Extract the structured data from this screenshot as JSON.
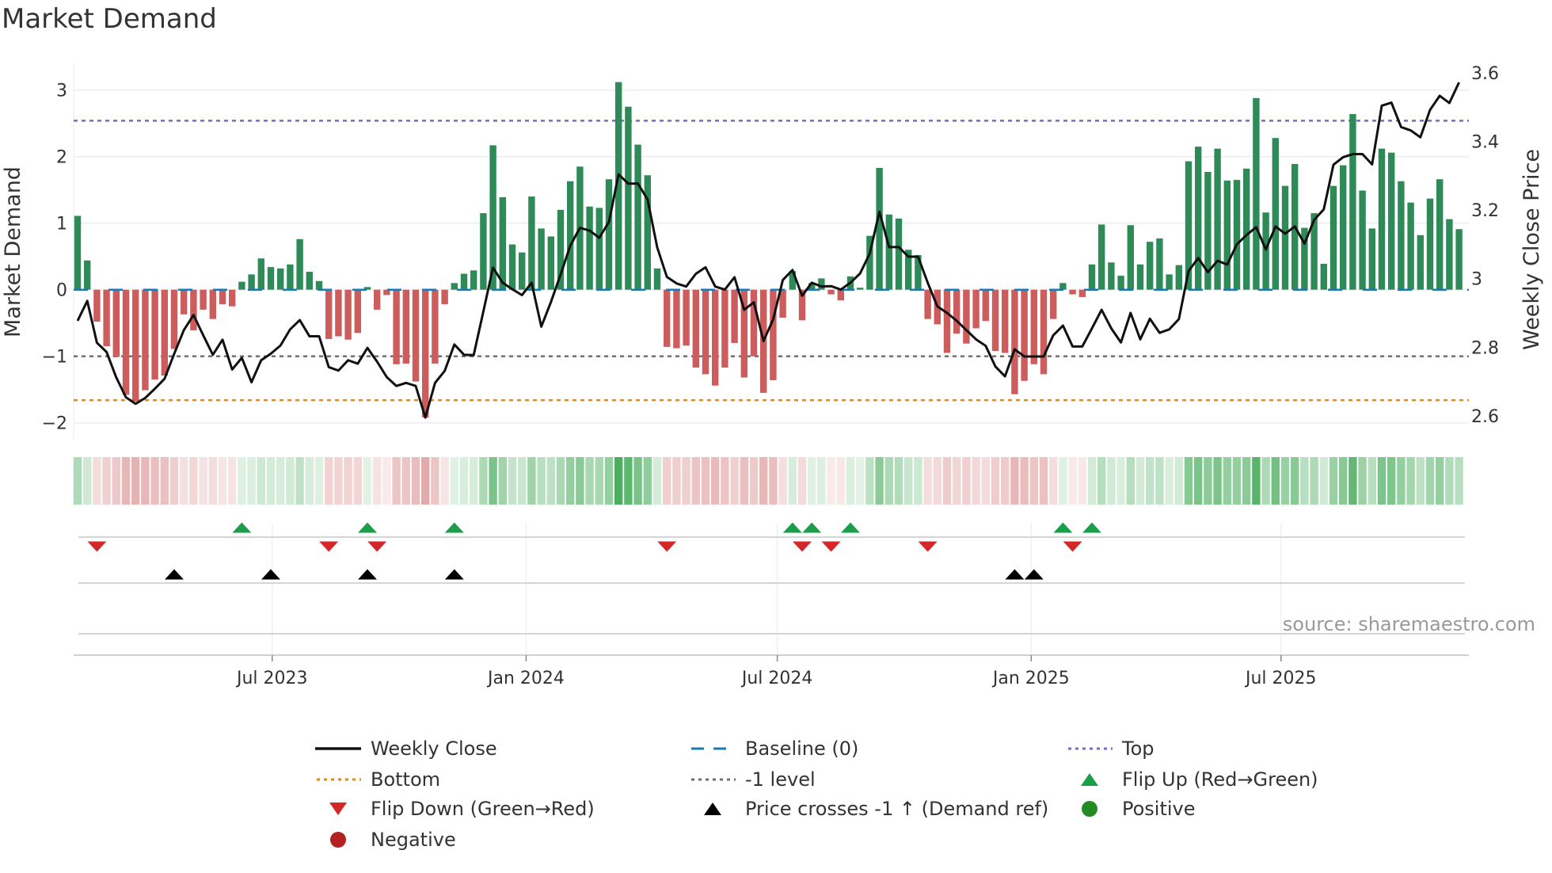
{
  "title": "Market Demand",
  "source": "source: sharemaestro.com",
  "chart_data": {
    "type": "bar",
    "title": "Market Demand",
    "ylabel": "Market Demand",
    "y2label": "Weekly Close Price",
    "ylim": [
      -2.2,
      3.4
    ],
    "y2lim": [
      2.56,
      3.62
    ],
    "yticks": [
      "3",
      "2",
      "1",
      "0",
      "−2"
    ],
    "ytick_values": [
      3,
      2,
      1,
      0,
      -2
    ],
    "yticks_neg1": "−1",
    "y2ticks": [
      "3.6",
      "3.4",
      "3.2",
      "3",
      "2.8",
      "2.6"
    ],
    "y2tick_values": [
      3.6,
      3.4,
      3.2,
      3.0,
      2.8,
      2.6
    ],
    "start_date": "2023-02-10",
    "frequency": "weekly",
    "x_ticks": [
      {
        "label": "Jul 2023",
        "date": "2023-07-01"
      },
      {
        "label": "Jan 2024",
        "date": "2024-01-01"
      },
      {
        "label": "Jul 2024",
        "date": "2024-07-01"
      },
      {
        "label": "Jan 2025",
        "date": "2025-01-01"
      },
      {
        "label": "Jul 2025",
        "date": "2025-07-01"
      }
    ],
    "reference_lines": {
      "top": 2.54,
      "bottom": -1.66,
      "minus_one": -1.0,
      "baseline": 0
    },
    "demand": [
      1.11,
      0.44,
      -0.48,
      -0.85,
      -1.01,
      -1.58,
      -1.68,
      -1.51,
      -1.35,
      -1.29,
      -0.89,
      -0.37,
      -0.61,
      -0.3,
      -0.44,
      -0.22,
      -0.25,
      0.12,
      0.23,
      0.47,
      0.34,
      0.32,
      0.38,
      0.76,
      0.27,
      0.13,
      -0.74,
      -0.7,
      -0.75,
      -0.65,
      0.04,
      -0.3,
      -0.08,
      -1.12,
      -1.11,
      -1.38,
      -1.92,
      -1.11,
      -0.22,
      0.1,
      0.24,
      0.29,
      1.15,
      2.17,
      1.39,
      0.68,
      0.56,
      1.4,
      0.92,
      0.8,
      1.2,
      1.63,
      1.85,
      1.25,
      1.23,
      1.66,
      3.12,
      2.75,
      2.18,
      1.72,
      0.32,
      -0.86,
      -0.88,
      -0.84,
      -1.17,
      -1.27,
      -1.44,
      -1.17,
      -0.8,
      -1.32,
      -1.0,
      -1.55,
      -1.36,
      -0.42,
      0.28,
      -0.46,
      0.1,
      0.17,
      -0.07,
      -0.16,
      0.2,
      0.03,
      0.81,
      1.83,
      1.13,
      1.07,
      0.6,
      0.52,
      -0.44,
      -0.52,
      -0.95,
      -0.66,
      -0.81,
      -0.58,
      -0.47,
      -0.92,
      -0.95,
      -1.57,
      -1.37,
      -1.12,
      -1.27,
      -0.44,
      0.1,
      -0.07,
      -0.11,
      0.38,
      0.98,
      0.41,
      0.21,
      0.97,
      0.38,
      0.72,
      0.77,
      0.23,
      0.37,
      1.93,
      2.15,
      1.77,
      2.12,
      1.64,
      1.65,
      1.82,
      2.88,
      1.16,
      2.28,
      1.56,
      1.89,
      0.93,
      1.15,
      0.39,
      1.56,
      1.87,
      2.64,
      1.49,
      0.92,
      2.12,
      2.06,
      1.63,
      1.31,
      0.82,
      1.37,
      1.66,
      1.06,
      0.91
    ],
    "weekly_close": [
      2.877,
      2.935,
      2.813,
      2.786,
      2.712,
      2.654,
      2.635,
      2.652,
      2.679,
      2.708,
      2.781,
      2.85,
      2.894,
      2.835,
      2.778,
      2.822,
      2.735,
      2.769,
      2.698,
      2.762,
      2.781,
      2.805,
      2.852,
      2.879,
      2.832,
      2.832,
      2.742,
      2.732,
      2.762,
      2.752,
      2.798,
      2.758,
      2.713,
      2.687,
      2.696,
      2.687,
      2.595,
      2.696,
      2.731,
      2.808,
      2.778,
      2.777,
      2.904,
      3.032,
      2.988,
      2.969,
      2.952,
      2.988,
      2.86,
      2.932,
      3.012,
      3.096,
      3.148,
      3.14,
      3.119,
      3.165,
      3.304,
      3.277,
      3.277,
      3.231,
      3.091,
      3.005,
      2.986,
      2.977,
      3.014,
      3.033,
      2.977,
      2.968,
      3.004,
      2.909,
      2.931,
      2.818,
      2.881,
      2.996,
      3.025,
      2.95,
      2.988,
      2.977,
      2.978,
      2.968,
      2.988,
      3.015,
      3.073,
      3.195,
      3.092,
      3.092,
      3.064,
      3.064,
      2.988,
      2.919,
      2.9,
      2.877,
      2.85,
      2.823,
      2.804,
      2.744,
      2.715,
      2.794,
      2.773,
      2.773,
      2.773,
      2.835,
      2.863,
      2.802,
      2.802,
      2.855,
      2.909,
      2.855,
      2.814,
      2.9,
      2.823,
      2.883,
      2.842,
      2.852,
      2.882,
      3.022,
      3.06,
      3.019,
      3.052,
      3.041,
      3.1,
      3.127,
      3.15,
      3.085,
      3.152,
      3.131,
      3.152,
      3.102,
      3.171,
      3.202,
      3.332,
      3.354,
      3.363,
      3.363,
      3.333,
      3.504,
      3.513,
      3.442,
      3.432,
      3.412,
      3.492,
      3.533,
      3.512,
      3.572
    ],
    "flip_up_weeks": [
      18,
      31,
      40,
      75,
      77,
      81,
      103,
      106
    ],
    "flip_down_weeks": [
      3,
      27,
      32,
      62,
      76,
      79,
      89,
      104
    ],
    "price_cross_weeks": [
      11,
      21,
      31,
      40,
      98,
      100
    ],
    "legend": [
      {
        "label": "Weekly Close",
        "kind": "line",
        "color": "#111111"
      },
      {
        "label": "Baseline (0)",
        "kind": "dash",
        "color": "#1f77b4"
      },
      {
        "label": "Top",
        "kind": "dot",
        "color": "#7b68c8"
      },
      {
        "label": "Bottom",
        "kind": "dot",
        "color": "#e08a1e"
      },
      {
        "label": "-1 level",
        "kind": "dot",
        "color": "#707070"
      },
      {
        "label": "Flip Up (Red→Green)",
        "kind": "tri-up",
        "color": "#1a9e4a"
      },
      {
        "label": "Flip Down (Green→Red)",
        "kind": "tri-down",
        "color": "#d62728"
      },
      {
        "label": "Price crosses -1 ↑ (Demand ref)",
        "kind": "tri-up",
        "color": "#000000"
      },
      {
        "label": "Positive",
        "kind": "dot-marker",
        "color": "#228b22"
      },
      {
        "label": "Negative",
        "kind": "dot-marker",
        "color": "#b22222"
      }
    ],
    "legend_position": "bottom",
    "colors": {
      "positive_bar": "#2e8b57",
      "negative_bar": "#cd5c5c",
      "grid": "#eef0f4"
    }
  }
}
